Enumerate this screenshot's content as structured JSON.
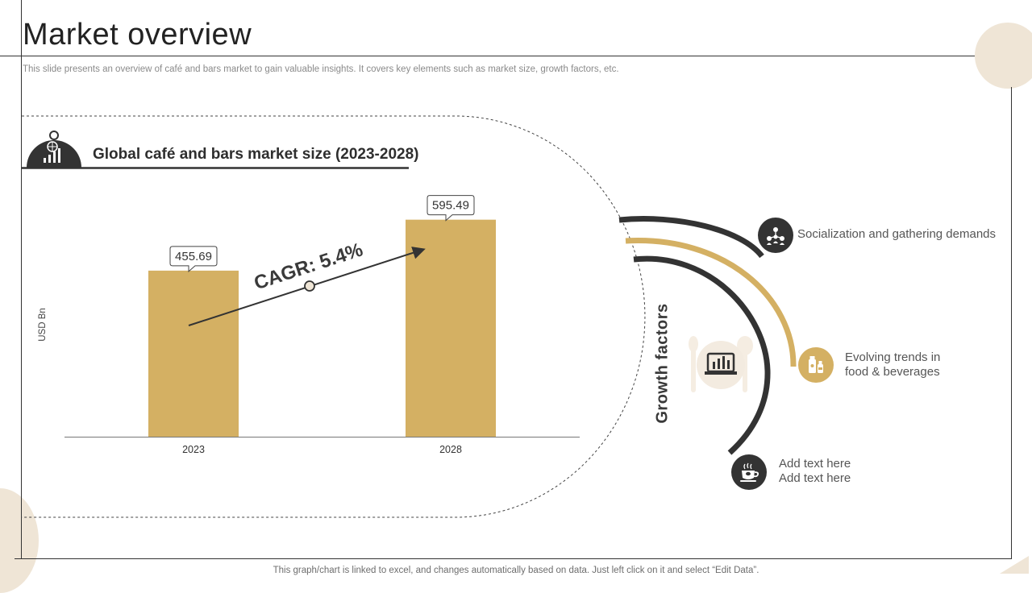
{
  "page": {
    "title": "Market overview",
    "subtitle": "This slide presents an overview of café and bars market to gain valuable insights. It covers key elements such as market size, growth factors, etc.",
    "footer_note": "This graph/chart is linked to excel, and changes automatically based on data. Just left click on it and select “Edit Data”."
  },
  "chart_data": {
    "type": "bar",
    "title": "Global café and bars market size (2023-2028)",
    "ylabel": "USD Bn",
    "xlabel": "",
    "categories": [
      "2023",
      "2028"
    ],
    "values": [
      455.69,
      595.49
    ],
    "value_labels": [
      "455.69",
      "595.49"
    ],
    "ylim": [
      0,
      650
    ],
    "grid": false,
    "bar_color": "#d4b063",
    "annotation": "CAGR: 5.4%"
  },
  "growth": {
    "title": "Growth factors",
    "factors": [
      {
        "label": "Socialization and gathering demands",
        "icon": "people-network-icon"
      },
      {
        "label_line1": "Evolving trends in",
        "label_line2": "food & beverages",
        "icon": "beverage-bottles-icon"
      },
      {
        "label_line1": "Add text here",
        "label_line2": "Add text here",
        "icon": "coffee-cup-icon"
      }
    ],
    "center_icon": "laptop-chart-icon"
  },
  "colors": {
    "accent_gold": "#d4b063",
    "dark": "#333333",
    "cream": "#efe5d6"
  }
}
